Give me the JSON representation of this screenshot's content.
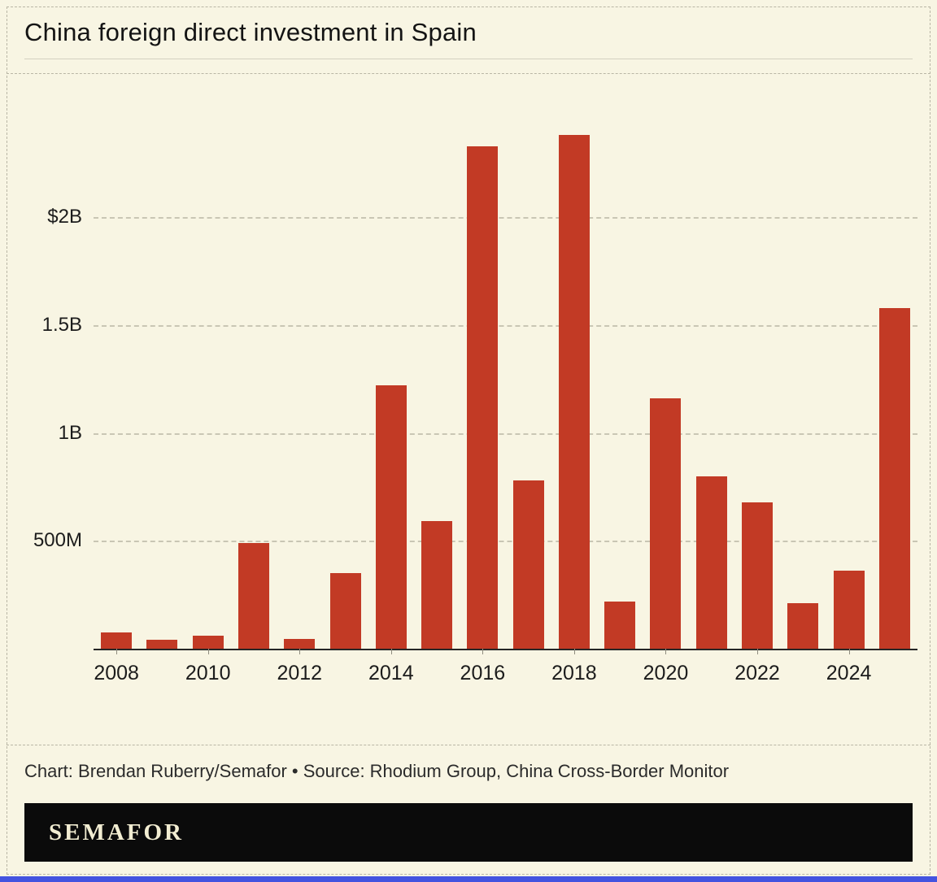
{
  "header": {
    "title": "China foreign direct investment in Spain"
  },
  "footer": {
    "credit": "Chart: Brendan Ruberry/Semafor • Source: Rhodium Group, China Cross-Border Monitor",
    "brand": "SEMAFOR"
  },
  "colors": {
    "background": "#f8f5e3",
    "bar": "#c23a25",
    "grid": "#c9c6b4",
    "axis_text": "#1c1c1c",
    "brand_bar": "#0b0b0b",
    "brand_text": "#f2edd2",
    "accent_strip": "#4353e0"
  },
  "chart_data": {
    "type": "bar",
    "title": "China foreign direct investment in Spain",
    "unit": "USD millions",
    "x": [
      2008,
      2009,
      2010,
      2011,
      2012,
      2013,
      2014,
      2015,
      2016,
      2017,
      2018,
      2019,
      2020,
      2021,
      2022,
      2023,
      2024,
      2025
    ],
    "values": [
      75,
      40,
      60,
      490,
      45,
      350,
      1220,
      590,
      2330,
      780,
      2380,
      220,
      1160,
      800,
      680,
      210,
      360,
      1580
    ],
    "y_ticks": [
      {
        "value": 500,
        "label": "500M"
      },
      {
        "value": 1000,
        "label": "1B"
      },
      {
        "value": 1500,
        "label": "1.5B"
      },
      {
        "value": 2000,
        "label": "$2B"
      }
    ],
    "x_tick_labels": [
      2008,
      2010,
      2012,
      2014,
      2016,
      2018,
      2020,
      2022,
      2024
    ],
    "ylim": [
      0,
      2630
    ],
    "xlabel": "",
    "ylabel": "",
    "grid": true,
    "legend": false
  }
}
